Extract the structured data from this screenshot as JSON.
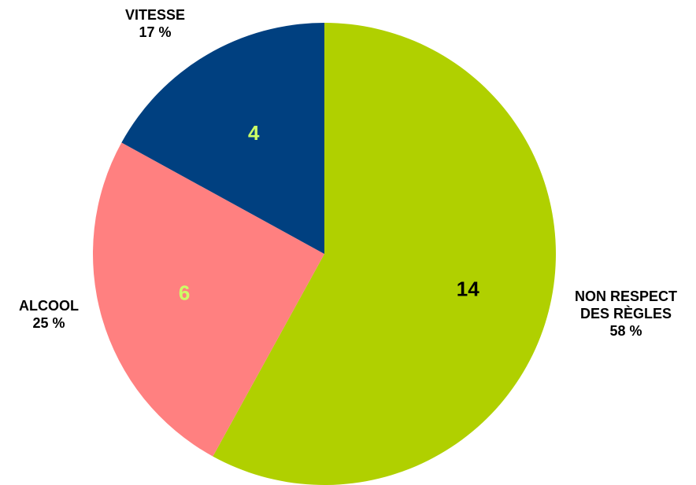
{
  "chart_data": {
    "type": "pie",
    "categories": [
      "NON RESPECT DES RÈGLES",
      "ALCOOL",
      "VITESSE"
    ],
    "values": [
      58,
      25,
      17
    ],
    "value_labels": [
      "58 %",
      "25 %",
      "17 %"
    ],
    "counts": [
      14,
      6,
      4
    ],
    "colors": [
      "#b0d000",
      "#ff8080",
      "#004080"
    ],
    "count_colors": [
      "#000000",
      "#ccff66",
      "#ccff66"
    ]
  }
}
